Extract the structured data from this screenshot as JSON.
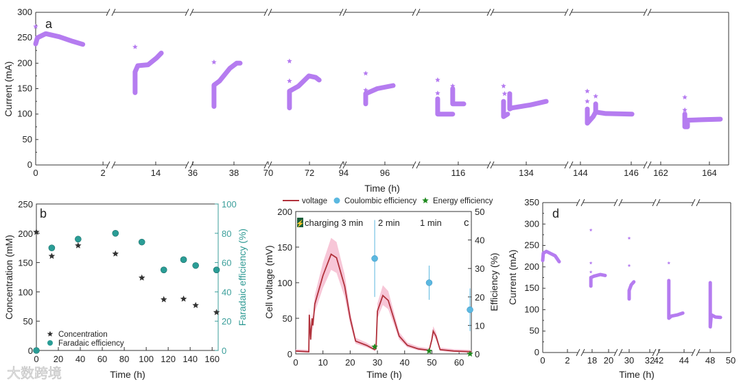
{
  "watermark": "大数跨境",
  "colors": {
    "current": "#b57cf0",
    "concentration": "#333333",
    "faradaic": "#2a9d96",
    "voltage": "#b0303a",
    "voltage_band": "#f6bcd0",
    "coulombic": "#5bb8e0",
    "energy": "#1f8a1f"
  },
  "chart_data": [
    {
      "panel": "a",
      "type": "scatter",
      "xlabel": "Time (h)",
      "ylabel": "Current (mA)",
      "ylim": [
        0,
        300
      ],
      "yticks": [
        "0",
        "50",
        "100",
        "150",
        "200",
        "250",
        "300"
      ],
      "broken_x_axis": true,
      "segments": [
        {
          "range": [
            0,
            2.14
          ],
          "ticks": [
            {
              "v": 0,
              "l": "0"
            },
            {
              "v": 2,
              "l": "2"
            }
          ],
          "lines": [
            [
              [
                0,
                238
              ],
              [
                0.05,
                250
              ],
              [
                0.3,
                258
              ],
              [
                0.7,
                252
              ],
              [
                1.1,
                243
              ],
              [
                1.4,
                237
              ]
            ]
          ],
          "outliers": [
            [
              0,
              272
            ]
          ]
        },
        {
          "range": [
            11.97,
            15.5
          ],
          "ticks": [
            {
              "v": 14,
              "l": "14"
            }
          ],
          "lines": [
            [
              [
                13.0,
                142
              ],
              [
                13.0,
                183
              ],
              [
                13.13,
                195
              ],
              [
                13.63,
                197
              ],
              [
                14.03,
                210
              ],
              [
                14.27,
                220
              ]
            ]
          ],
          "outliers": [
            [
              13.0,
              232
            ]
          ]
        },
        {
          "range": [
            35.97,
            39.53
          ],
          "ticks": [
            {
              "v": 36,
              "l": "36"
            },
            {
              "v": 38,
              "l": "38"
            }
          ],
          "lines": [
            [
              [
                37.03,
                115
              ],
              [
                37.03,
                157
              ],
              [
                37.3,
                165
              ],
              [
                37.8,
                190
              ],
              [
                38.13,
                200
              ],
              [
                38.3,
                200
              ]
            ]
          ],
          "outliers": [
            [
              37.03,
              202
            ]
          ]
        },
        {
          "range": [
            70.1,
            73.53
          ],
          "ticks": [
            {
              "v": 70,
              "l": "70"
            },
            {
              "v": 72,
              "l": "72"
            }
          ],
          "lines": [
            [
              [
                71.03,
                112
              ],
              [
                71.03,
                145
              ],
              [
                71.47,
                155
              ],
              [
                71.97,
                175
              ],
              [
                72.3,
                172
              ],
              [
                72.47,
                167
              ]
            ]
          ],
          "outliers": [
            [
              71.03,
              204
            ],
            [
              71.03,
              165
            ]
          ]
        },
        {
          "range": [
            94.07,
            97.4
          ],
          "ticks": [
            {
              "v": 94,
              "l": "94"
            },
            {
              "v": 96,
              "l": "96"
            }
          ],
          "lines": [
            [
              [
                95.07,
                120
              ],
              [
                95.07,
                140
              ],
              [
                95.63,
                150
              ],
              [
                96.4,
                156
              ]
            ]
          ],
          "outliers": [
            [
              95.07,
              180
            ],
            [
              95.07,
              147
            ]
          ]
        },
        {
          "range": [
            114.07,
            117.47
          ],
          "ticks": [
            {
              "v": 116,
              "l": "116"
            }
          ],
          "lines": [
            [
              [
                115.0,
                130
              ],
              [
                115.0,
                100
              ],
              [
                115.73,
                100
              ]
            ],
            [
              [
                115.73,
                150
              ],
              [
                115.73,
                120
              ],
              [
                116.27,
                120
              ]
            ]
          ],
          "outliers": [
            [
              115.0,
              167
            ],
            [
              115.0,
              141
            ],
            [
              115.73,
              155
            ]
          ]
        },
        {
          "range": [
            132.37,
            135.93
          ],
          "ticks": [
            {
              "v": 134,
              "l": "134"
            }
          ],
          "lines": [
            [
              [
                132.9,
                125
              ],
              [
                132.9,
                95
              ],
              [
                133.1,
                100
              ]
            ],
            [
              [
                133.2,
                140
              ],
              [
                133.2,
                110
              ],
              [
                133.3,
                112
              ],
              [
                134.2,
                118
              ],
              [
                134.97,
                125
              ]
            ]
          ],
          "outliers": [
            [
              132.9,
              155
            ],
            [
              132.95,
              140
            ],
            [
              133.2,
              140
            ]
          ]
        },
        {
          "range": [
            143.65,
            146.54
          ],
          "ticks": [
            {
              "v": 144,
              "l": "144"
            },
            {
              "v": 146,
              "l": "146"
            }
          ],
          "lines": [
            [
              [
                144.27,
                110
              ],
              [
                144.27,
                82
              ],
              [
                144.5,
                95
              ],
              [
                144.6,
                104
              ],
              [
                145.0,
                101
              ],
              [
                146.03,
                100
              ]
            ],
            [
              [
                144.6,
                120
              ],
              [
                144.6,
                104
              ]
            ]
          ],
          "outliers": [
            [
              144.27,
              145
            ],
            [
              144.27,
              125
            ],
            [
              144.6,
              135
            ]
          ]
        },
        {
          "range": [
            161.55,
            164.79
          ],
          "ticks": [
            {
              "v": 162,
              "l": "162"
            },
            {
              "v": 164,
              "l": "164"
            }
          ],
          "lines": [
            [
              [
                162.99,
                100
              ],
              [
                162.99,
                75
              ],
              [
                163.1,
                75
              ],
              [
                163.1,
                88
              ],
              [
                163.8,
                89
              ],
              [
                164.45,
                90
              ]
            ]
          ],
          "outliers": [
            [
              162.99,
              133
            ],
            [
              162.99,
              108
            ]
          ]
        }
      ]
    },
    {
      "panel": "b",
      "type": "scatter",
      "xlabel": "Time (h)",
      "ylabel": "Concentration  (mM)",
      "ylabel_right": "Faradaic efficiency (%)",
      "xlim": [
        0,
        160
      ],
      "ylim": [
        0,
        250
      ],
      "ylim_right": [
        0,
        100
      ],
      "xticks": [
        "0",
        "20",
        "40",
        "60",
        "80",
        "100",
        "120",
        "140",
        "160"
      ],
      "yticks": [
        "0",
        "50",
        "100",
        "150",
        "200",
        "250"
      ],
      "yticks_right": [
        "0",
        "20",
        "40",
        "60",
        "80",
        "100"
      ],
      "legend": [
        "Concentration",
        "Faradaic efficiency"
      ],
      "series": [
        {
          "name": "Concentration",
          "axis": "left",
          "x": [
            0,
            14,
            38,
            72,
            96,
            116,
            134,
            145,
            164
          ],
          "y": [
            202,
            161,
            179,
            165,
            124,
            87,
            88,
            77,
            65
          ]
        },
        {
          "name": "Faradaic efficiency",
          "axis": "right",
          "x": [
            0,
            14,
            38,
            72,
            96,
            116,
            134,
            145,
            164
          ],
          "y": [
            0,
            70,
            76,
            80,
            74,
            55,
            62,
            58,
            55
          ]
        }
      ]
    },
    {
      "panel": "c",
      "type": "line",
      "xlabel": "Time (h)",
      "ylabel": "Cell voltage (mV)",
      "ylabel_right": "Efficiency (%)",
      "xlim": [
        0,
        64.5
      ],
      "ylim": [
        0,
        200
      ],
      "ylim_right": [
        0,
        50
      ],
      "xticks": [
        "0",
        "10",
        "20",
        "30",
        "40",
        "50",
        "60"
      ],
      "yticks": [
        "0",
        "50",
        "100",
        "150",
        "200"
      ],
      "yticks_right": [
        "0",
        "10",
        "20",
        "30",
        "40",
        "50"
      ],
      "legend": [
        "voltage",
        "Coulombic efficiency",
        "Energy efficiency"
      ],
      "annotations": [
        "charging 3 min",
        "2 min",
        "1 min"
      ],
      "band_fraction": 0.15,
      "voltage": {
        "t": [
          0,
          4.8,
          5,
          5.5,
          6,
          6.3,
          7,
          10,
          13,
          15,
          18,
          20,
          22,
          26,
          29,
          29.5,
          30,
          32,
          34,
          36,
          38,
          41,
          45,
          49,
          50,
          50.5,
          51.5,
          53,
          58,
          64.5
        ],
        "v": [
          4,
          3,
          55,
          20,
          50,
          40,
          70,
          110,
          140,
          135,
          95,
          50,
          18,
          12,
          6,
          8,
          60,
          82,
          75,
          50,
          25,
          12,
          7,
          5,
          20,
          32,
          25,
          6,
          4,
          3
        ]
      },
      "coulombic": [
        {
          "t": 29,
          "v": 33.5,
          "lo": 20,
          "hi": 47
        },
        {
          "t": 49,
          "v": 25,
          "lo": 19,
          "hi": 31
        },
        {
          "t": 64,
          "v": 15.5,
          "lo": 8,
          "hi": 23
        }
      ],
      "energy": [
        {
          "t": 29,
          "v": 2.5
        },
        {
          "t": 49,
          "v": 1
        },
        {
          "t": 64,
          "v": 0
        }
      ]
    },
    {
      "panel": "d",
      "type": "scatter",
      "xlabel": "Time (h)",
      "ylabel": "Current (mA)",
      "ylim": [
        0,
        350
      ],
      "yticks": [
        "0",
        "50",
        "100",
        "150",
        "200",
        "250",
        "300",
        "350"
      ],
      "broken_x_axis": true,
      "segments": [
        {
          "range": [
            0,
            2.83
          ],
          "ticks": [
            {
              "v": 0,
              "l": "0"
            },
            {
              "v": 2,
              "l": "2"
            }
          ],
          "lines": [
            [
              [
                0,
                215
              ],
              [
                0.05,
                232
              ],
              [
                0.3,
                236
              ],
              [
                1.0,
                226
              ],
              [
                1.33,
                212
              ]
            ]
          ],
          "outliers": []
        },
        {
          "range": [
            16.92,
            20.83
          ],
          "ticks": [
            {
              "v": 18,
              "l": "18"
            },
            {
              "v": 20,
              "l": "20"
            }
          ],
          "lines": [
            [
              [
                17.85,
                155
              ],
              [
                17.85,
                175
              ],
              [
                18.2,
                178
              ],
              [
                19.0,
                182
              ],
              [
                19.58,
                180
              ]
            ]
          ],
          "outliers": [
            [
              17.85,
              286
            ],
            [
              17.85,
              209
            ],
            [
              17.85,
              188
            ]
          ]
        },
        {
          "range": [
            29.2,
            32.4
          ],
          "ticks": [
            {
              "v": 30,
              "l": "30"
            },
            {
              "v": 32,
              "l": "32"
            }
          ],
          "lines": [
            [
              [
                30.0,
                125
              ],
              [
                30.0,
                145
              ],
              [
                30.2,
                158
              ],
              [
                30.45,
                165
              ]
            ]
          ],
          "outliers": [
            [
              30.0,
              267
            ],
            [
              30.0,
              203
            ]
          ]
        },
        {
          "range": [
            42,
            44.7
          ],
          "ticks": [
            {
              "v": 42,
              "l": "42"
            },
            {
              "v": 44,
              "l": "44"
            }
          ],
          "lines": [
            [
              [
                42.8,
                168
              ],
              [
                42.8,
                80
              ],
              [
                43.0,
                85
              ],
              [
                43.5,
                88
              ],
              [
                43.9,
                92
              ]
            ]
          ],
          "outliers": [
            [
              42.8,
              209
            ]
          ]
        },
        {
          "range": [
            46.85,
            50
          ],
          "ticks": [
            {
              "v": 48,
              "l": "48"
            },
            {
              "v": 50,
              "l": "50"
            }
          ],
          "lines": [
            [
              [
                48.0,
                163
              ],
              [
                48.0,
                60
              ],
              [
                48.1,
                88
              ],
              [
                48.5,
                83
              ],
              [
                49.0,
                82
              ]
            ]
          ],
          "outliers": []
        }
      ]
    }
  ],
  "labels": {
    "a": "a",
    "b": "b",
    "c": "c",
    "d": "d"
  }
}
